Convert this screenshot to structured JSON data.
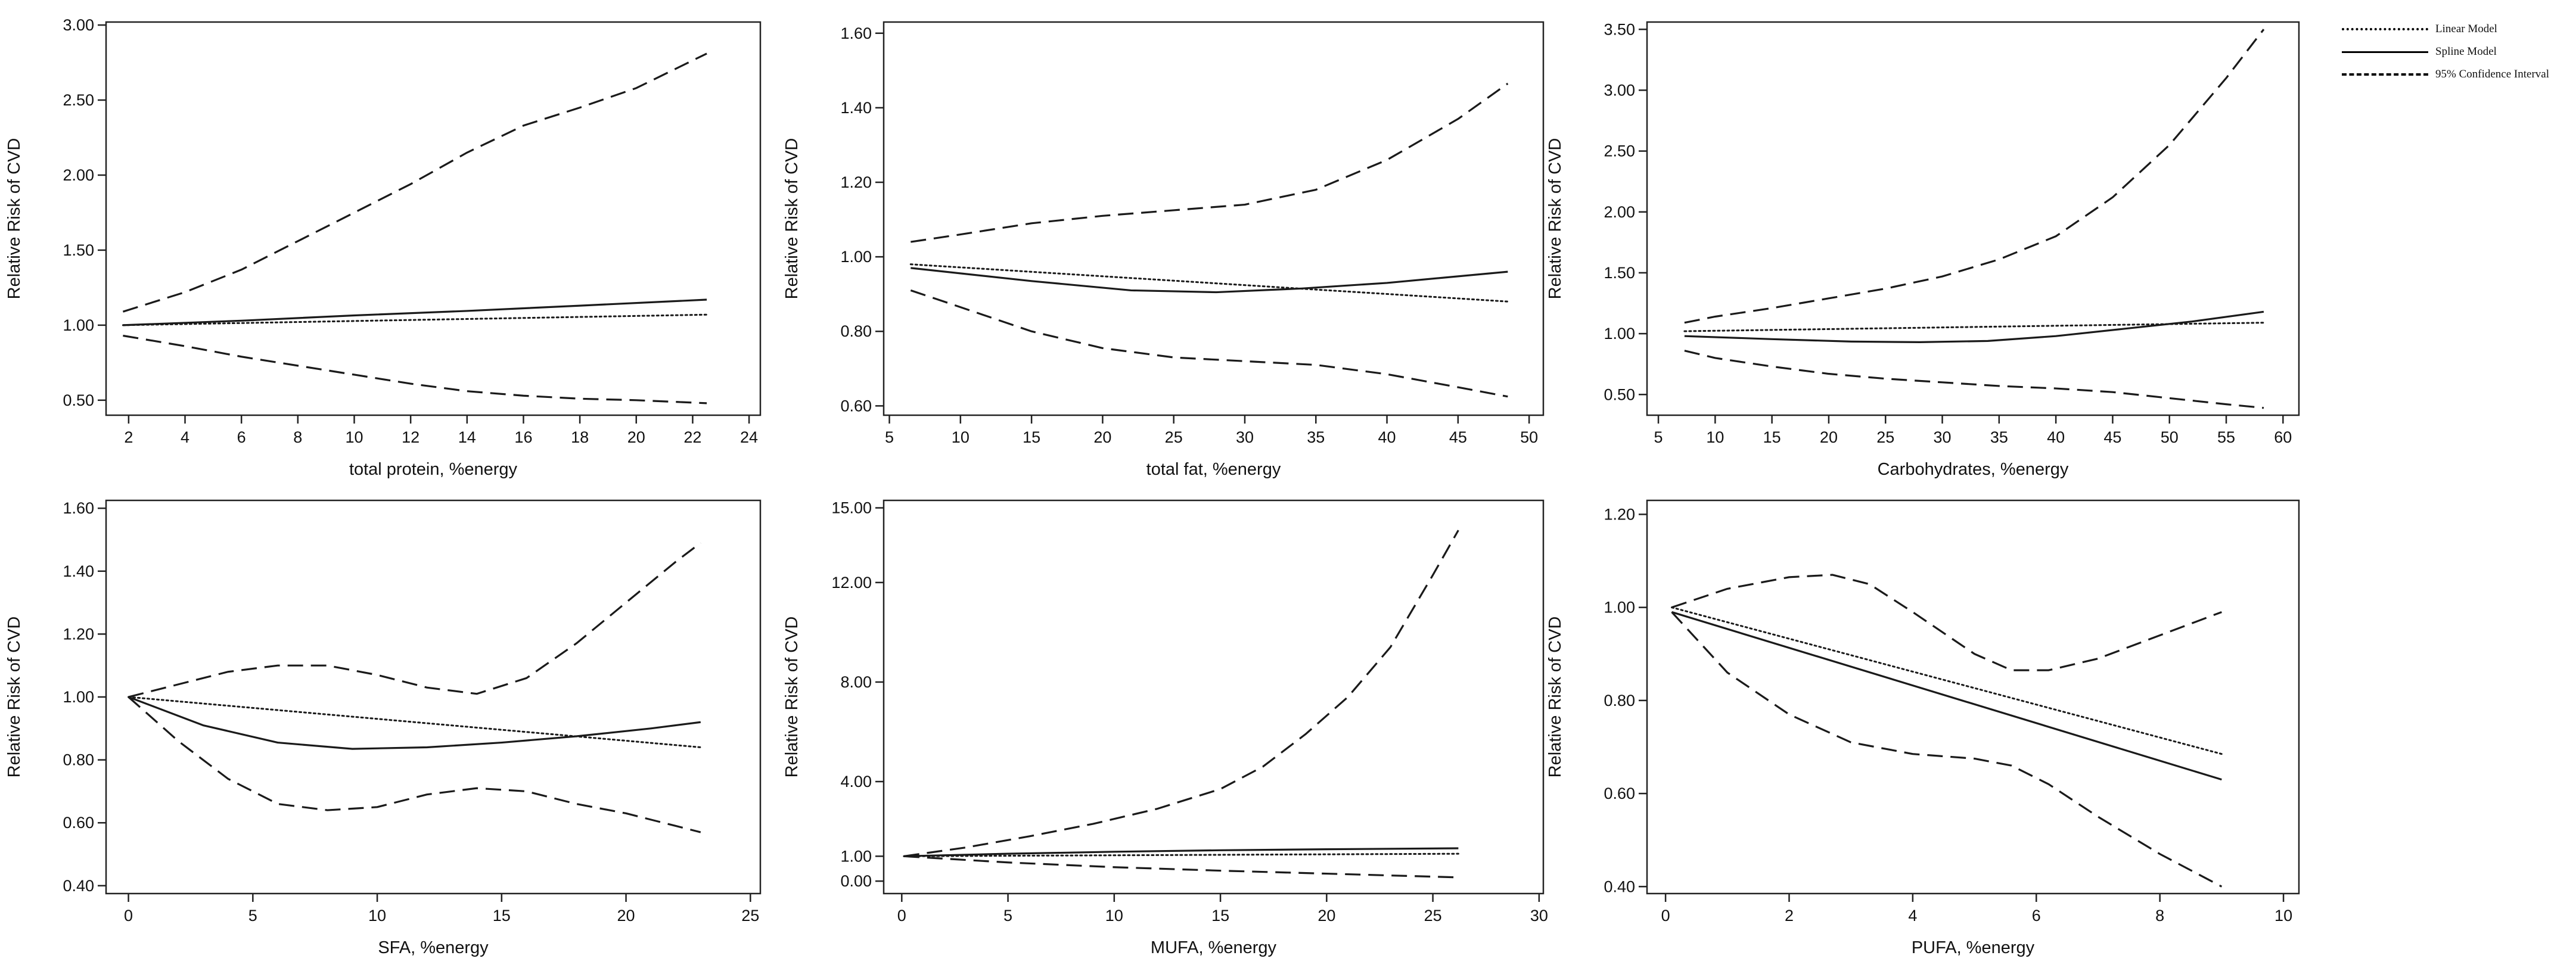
{
  "legend": {
    "items": [
      {
        "label": "Linear Model",
        "style": "dotted"
      },
      {
        "label": "Spline Model",
        "style": "solid"
      },
      {
        "label": "95% Confidence Interval",
        "style": "dashed"
      }
    ]
  },
  "chart_data": [
    {
      "type": "line",
      "xlabel": "total protein, %energy",
      "ylabel": "Relative Risk of CVD",
      "xlim": [
        1.2,
        24.4
      ],
      "ylim": [
        0.4,
        3.02
      ],
      "xticks": [
        2,
        4,
        6,
        8,
        10,
        12,
        14,
        16,
        18,
        20,
        22,
        24
      ],
      "xtick_labels": [
        "2",
        "4",
        "6",
        "8",
        "10",
        "12",
        "14",
        "16",
        "18",
        "20",
        "22",
        "24"
      ],
      "yticks": [
        0.5,
        1.0,
        1.5,
        2.0,
        2.5,
        3.0
      ],
      "ytick_labels": [
        "0.50",
        "1.00",
        "1.50",
        "2.00",
        "2.50",
        "3.00"
      ],
      "series": [
        {
          "name": "Linear Model",
          "style": "dotted",
          "x": [
            1.8,
            22.5
          ],
          "y": [
            1.0,
            1.07
          ]
        },
        {
          "name": "Spline Model",
          "style": "solid",
          "x": [
            1.8,
            6,
            10,
            14,
            18,
            22.5
          ],
          "y": [
            1.0,
            1.03,
            1.065,
            1.095,
            1.13,
            1.17
          ]
        },
        {
          "name": "95% CI upper",
          "style": "dashed",
          "x": [
            1.8,
            4,
            6,
            8,
            10,
            12,
            14,
            16,
            18,
            20,
            22.5
          ],
          "y": [
            1.09,
            1.22,
            1.37,
            1.56,
            1.75,
            1.94,
            2.15,
            2.33,
            2.45,
            2.58,
            2.81
          ]
        },
        {
          "name": "95% CI lower",
          "style": "dashed",
          "x": [
            1.8,
            4,
            6,
            8,
            10,
            12,
            14,
            16,
            18,
            20,
            22.5
          ],
          "y": [
            0.93,
            0.86,
            0.79,
            0.73,
            0.67,
            0.61,
            0.56,
            0.53,
            0.51,
            0.5,
            0.48
          ]
        }
      ]
    },
    {
      "type": "line",
      "xlabel": "total fat, %energy",
      "ylabel": "Relative Risk of CVD",
      "xlim": [
        4.6,
        51.0
      ],
      "ylim": [
        0.575,
        1.63
      ],
      "xticks": [
        5,
        10,
        15,
        20,
        25,
        30,
        35,
        40,
        45,
        50
      ],
      "xtick_labels": [
        "5",
        "10",
        "15",
        "20",
        "25",
        "30",
        "35",
        "40",
        "45",
        "50"
      ],
      "yticks": [
        0.6,
        0.8,
        1.0,
        1.2,
        1.4,
        1.6
      ],
      "ytick_labels": [
        "0.60",
        "0.80",
        "1.00",
        "1.20",
        "1.40",
        "1.60"
      ],
      "series": [
        {
          "name": "Linear Model",
          "style": "dotted",
          "x": [
            6.5,
            48.5
          ],
          "y": [
            0.98,
            0.88
          ]
        },
        {
          "name": "Spline Model",
          "style": "solid",
          "x": [
            6.5,
            15,
            22,
            28,
            34,
            40,
            48.5
          ],
          "y": [
            0.97,
            0.935,
            0.91,
            0.905,
            0.915,
            0.93,
            0.96
          ]
        },
        {
          "name": "95% CI upper",
          "style": "dashed",
          "x": [
            6.5,
            10,
            15,
            20,
            25,
            30,
            35,
            40,
            45,
            48.5
          ],
          "y": [
            1.04,
            1.06,
            1.09,
            1.11,
            1.125,
            1.14,
            1.18,
            1.26,
            1.37,
            1.465
          ]
        },
        {
          "name": "95% CI lower",
          "style": "dashed",
          "x": [
            6.5,
            10,
            15,
            20,
            25,
            30,
            35,
            40,
            45,
            48.5
          ],
          "y": [
            0.91,
            0.865,
            0.8,
            0.755,
            0.73,
            0.72,
            0.71,
            0.685,
            0.65,
            0.625
          ]
        }
      ]
    },
    {
      "type": "line",
      "xlabel": "Carbohydrates, %energy",
      "ylabel": "Relative Risk of CVD",
      "xlim": [
        4.0,
        61.4
      ],
      "ylim": [
        0.33,
        3.56
      ],
      "xticks": [
        5,
        10,
        15,
        20,
        25,
        30,
        35,
        40,
        45,
        50,
        55,
        60
      ],
      "xtick_labels": [
        "5",
        "10",
        "15",
        "20",
        "25",
        "30",
        "35",
        "40",
        "45",
        "50",
        "55",
        "60"
      ],
      "yticks": [
        0.5,
        1.0,
        1.5,
        2.0,
        2.5,
        3.0,
        3.5
      ],
      "ytick_labels": [
        "0.50",
        "1.00",
        "1.50",
        "2.00",
        "2.50",
        "3.00",
        "3.50"
      ],
      "series": [
        {
          "name": "Linear Model",
          "style": "dotted",
          "x": [
            7.3,
            58.3
          ],
          "y": [
            1.02,
            1.09
          ]
        },
        {
          "name": "Spline Model",
          "style": "solid",
          "x": [
            7.3,
            15,
            22,
            28,
            34,
            40,
            46,
            52,
            58.3
          ],
          "y": [
            0.98,
            0.955,
            0.935,
            0.93,
            0.94,
            0.98,
            1.04,
            1.1,
            1.18
          ]
        },
        {
          "name": "95% CI upper",
          "style": "dashed",
          "x": [
            7.3,
            10,
            15,
            20,
            25,
            30,
            35,
            40,
            45,
            50,
            55,
            58.3
          ],
          "y": [
            1.09,
            1.14,
            1.21,
            1.29,
            1.37,
            1.47,
            1.61,
            1.8,
            2.12,
            2.55,
            3.1,
            3.5
          ]
        },
        {
          "name": "95% CI lower",
          "style": "dashed",
          "x": [
            7.3,
            10,
            15,
            20,
            25,
            30,
            35,
            40,
            45,
            50,
            55,
            58.3
          ],
          "y": [
            0.86,
            0.8,
            0.73,
            0.67,
            0.63,
            0.6,
            0.57,
            0.55,
            0.52,
            0.47,
            0.42,
            0.39
          ]
        }
      ]
    },
    {
      "type": "line",
      "xlabel": "SFA, %energy",
      "ylabel": "Relative Risk of CVD",
      "xlim": [
        -0.9,
        25.4
      ],
      "ylim": [
        0.375,
        1.625
      ],
      "xticks": [
        0,
        5,
        10,
        15,
        20,
        25
      ],
      "xtick_labels": [
        "0",
        "5",
        "10",
        "15",
        "20",
        "25"
      ],
      "yticks": [
        0.4,
        0.6,
        0.8,
        1.0,
        1.2,
        1.4,
        1.6
      ],
      "ytick_labels": [
        "0.40",
        "0.60",
        "0.80",
        "1.00",
        "1.20",
        "1.40",
        "1.60"
      ],
      "series": [
        {
          "name": "Linear Model",
          "style": "dotted",
          "x": [
            0,
            23
          ],
          "y": [
            1.0,
            0.84
          ]
        },
        {
          "name": "Spline Model",
          "style": "solid",
          "x": [
            0,
            3,
            6,
            9,
            12,
            15,
            18,
            21,
            23
          ],
          "y": [
            1.0,
            0.91,
            0.855,
            0.835,
            0.84,
            0.855,
            0.875,
            0.9,
            0.92
          ]
        },
        {
          "name": "95% CI upper",
          "style": "dashed",
          "x": [
            0,
            2,
            4,
            6,
            8,
            10,
            12,
            14,
            16,
            18,
            20,
            22,
            23
          ],
          "y": [
            1.0,
            1.04,
            1.08,
            1.1,
            1.1,
            1.07,
            1.03,
            1.01,
            1.06,
            1.17,
            1.3,
            1.43,
            1.49
          ]
        },
        {
          "name": "95% CI lower",
          "style": "dashed",
          "x": [
            0,
            2,
            4,
            6,
            8,
            10,
            12,
            14,
            16,
            18,
            20,
            22,
            23
          ],
          "y": [
            1.0,
            0.86,
            0.74,
            0.66,
            0.64,
            0.65,
            0.69,
            0.71,
            0.7,
            0.66,
            0.63,
            0.59,
            0.57
          ]
        }
      ]
    },
    {
      "type": "line",
      "xlabel": "MUFA, %energy",
      "ylabel": "Relative Risk of CVD",
      "xlim": [
        -0.85,
        30.2
      ],
      "ylim": [
        -0.5,
        15.3
      ],
      "xticks": [
        0,
        5,
        10,
        15,
        20,
        25,
        30
      ],
      "xtick_labels": [
        "0",
        "5",
        "10",
        "15",
        "20",
        "25",
        "30"
      ],
      "yticks": [
        0.0,
        1.0,
        4.0,
        8.0,
        12.0,
        15.0
      ],
      "ytick_labels": [
        "0.00",
        "1.00",
        "4.00",
        "8.00",
        "12.00",
        "15.00"
      ],
      "series": [
        {
          "name": "Linear Model",
          "style": "dotted",
          "x": [
            0.1,
            26.2
          ],
          "y": [
            1.0,
            1.1
          ]
        },
        {
          "name": "Spline Model",
          "style": "solid",
          "x": [
            0.1,
            5,
            10,
            15,
            20,
            26.2
          ],
          "y": [
            1.0,
            1.1,
            1.18,
            1.24,
            1.28,
            1.32
          ]
        },
        {
          "name": "95% CI upper",
          "style": "dashed",
          "x": [
            0.1,
            3,
            6,
            9,
            12,
            15,
            17,
            19,
            21,
            23,
            25,
            26.2
          ],
          "y": [
            1.0,
            1.35,
            1.8,
            2.3,
            2.9,
            3.7,
            4.6,
            5.9,
            7.4,
            9.4,
            12.3,
            14.1
          ]
        },
        {
          "name": "95% CI lower",
          "style": "dashed",
          "x": [
            0.1,
            5,
            10,
            15,
            20,
            26.2
          ],
          "y": [
            1.0,
            0.75,
            0.56,
            0.42,
            0.3,
            0.15
          ]
        }
      ]
    },
    {
      "type": "line",
      "xlabel": "PUFA, %energy",
      "ylabel": "Relative Risk of CVD",
      "xlim": [
        -0.3,
        10.25
      ],
      "ylim": [
        0.385,
        1.23
      ],
      "xticks": [
        0,
        2,
        4,
        6,
        8,
        10
      ],
      "xtick_labels": [
        "0",
        "2",
        "4",
        "6",
        "8",
        "10"
      ],
      "yticks": [
        0.4,
        0.6,
        0.8,
        1.0,
        1.2
      ],
      "ytick_labels": [
        "0.40",
        "0.60",
        "0.80",
        "1.00",
        "1.20"
      ],
      "series": [
        {
          "name": "Linear Model",
          "style": "dotted",
          "x": [
            0.1,
            9.0
          ],
          "y": [
            1.0,
            0.685
          ]
        },
        {
          "name": "Spline Model",
          "style": "solid",
          "x": [
            0.1,
            9.0
          ],
          "y": [
            0.99,
            0.63
          ]
        },
        {
          "name": "95% CI upper",
          "style": "dashed",
          "x": [
            0.1,
            1,
            2,
            2.7,
            3.3,
            4,
            5,
            5.6,
            6.2,
            7,
            8,
            9.0
          ],
          "y": [
            1.0,
            1.04,
            1.065,
            1.07,
            1.05,
            0.99,
            0.9,
            0.865,
            0.865,
            0.89,
            0.94,
            0.99
          ]
        },
        {
          "name": "95% CI lower",
          "style": "dashed",
          "x": [
            0.1,
            1,
            2,
            3,
            4,
            5,
            5.6,
            6.2,
            7,
            8,
            9.0
          ],
          "y": [
            0.99,
            0.86,
            0.77,
            0.71,
            0.685,
            0.675,
            0.66,
            0.62,
            0.55,
            0.47,
            0.4
          ]
        }
      ]
    }
  ]
}
